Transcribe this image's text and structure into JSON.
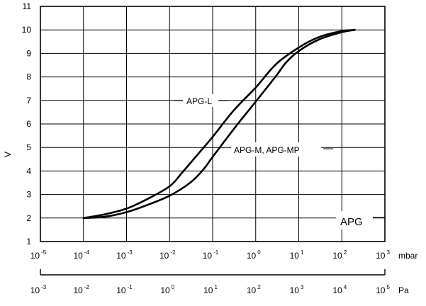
{
  "chart_data": {
    "type": "line",
    "title": "",
    "ylabel": "V",
    "xlabel": "",
    "x_scale": "log",
    "xlim": [
      1e-05,
      1000
    ],
    "ylim": [
      1,
      11
    ],
    "y_ticks": [
      "1",
      "2",
      "3",
      "4",
      "5",
      "6",
      "7",
      "8",
      "9",
      "10",
      "11"
    ],
    "x_unit_primary": "mbar",
    "x_unit_secondary": "Pa",
    "x_ticks_primary": [
      {
        "base": "10",
        "exp": "-5"
      },
      {
        "base": "10",
        "exp": "-4"
      },
      {
        "base": "10",
        "exp": "-3"
      },
      {
        "base": "10",
        "exp": "-2"
      },
      {
        "base": "10",
        "exp": "-1"
      },
      {
        "base": "10",
        "exp": "0"
      },
      {
        "base": "10",
        "exp": "1"
      },
      {
        "base": "10",
        "exp": "2"
      },
      {
        "base": "10",
        "exp": "3"
      }
    ],
    "x_ticks_secondary": [
      {
        "base": "10",
        "exp": "-3"
      },
      {
        "base": "10",
        "exp": "-2"
      },
      {
        "base": "10",
        "exp": "-1"
      },
      {
        "base": "10",
        "exp": "0"
      },
      {
        "base": "10",
        "exp": "1"
      },
      {
        "base": "10",
        "exp": "2"
      },
      {
        "base": "10",
        "exp": "3"
      },
      {
        "base": "10",
        "exp": "4"
      },
      {
        "base": "10",
        "exp": "5"
      }
    ],
    "grid": true,
    "series": [
      {
        "name": "APG-L",
        "x": [
          0.0001,
          0.0003,
          0.001,
          0.003,
          0.01,
          0.02,
          0.05,
          0.1,
          0.3,
          1,
          3,
          10,
          30,
          100,
          200
        ],
        "y": [
          2.0,
          2.15,
          2.4,
          2.8,
          3.35,
          3.95,
          4.8,
          5.45,
          6.55,
          7.55,
          8.55,
          9.25,
          9.7,
          9.95,
          10.0
        ]
      },
      {
        "name": "APG-M, APG-MP",
        "x": [
          0.0001,
          0.0003,
          0.001,
          0.003,
          0.01,
          0.03,
          0.06,
          0.1,
          0.3,
          1,
          3,
          5,
          10,
          30,
          100,
          200
        ],
        "y": [
          2.0,
          2.05,
          2.25,
          2.55,
          2.95,
          3.5,
          4.05,
          4.6,
          5.75,
          6.95,
          8.05,
          8.6,
          9.1,
          9.6,
          9.9,
          10.0
        ]
      }
    ],
    "annotations": [
      "APG-L",
      "APG-M, APG-MP"
    ],
    "badge": "APG",
    "colors": {
      "line": "#000000",
      "grid": "#000000",
      "background": "#ffffff"
    }
  }
}
